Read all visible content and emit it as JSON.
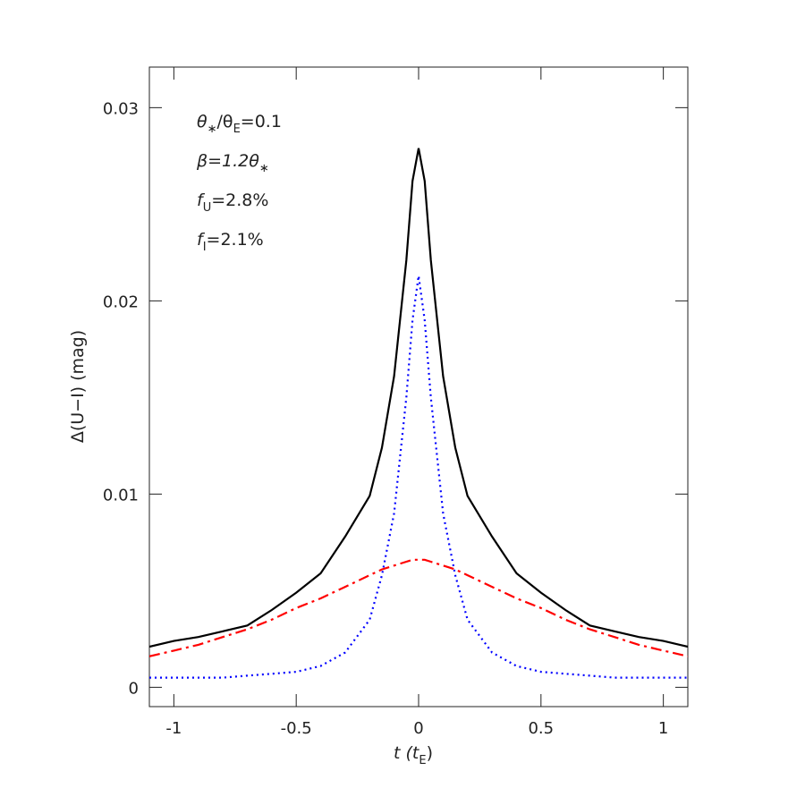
{
  "chart_data": {
    "type": "line",
    "x_label": [
      "t  (t",
      "E",
      ")"
    ],
    "y_label": [
      "Δ(U−I)  (mag)"
    ],
    "annotations": [
      [
        "θ",
        "∗",
        "/θ",
        "E",
        "=0.1"
      ],
      [
        "β=1.2θ",
        "∗"
      ],
      [
        "f",
        "U",
        "=2.8%"
      ],
      [
        "f",
        "I",
        "=2.1%"
      ]
    ],
    "x": [
      -1.1,
      -1,
      -0.9,
      -0.8,
      -0.7,
      -0.6,
      -0.5,
      -0.4,
      -0.3,
      -0.2,
      -0.15,
      -0.1,
      -0.05,
      -0.025,
      0,
      0.025,
      0.05,
      0.1,
      0.15,
      0.2,
      0.3,
      0.4,
      0.5,
      0.6,
      0.7,
      0.8,
      0.9,
      1,
      1.1
    ],
    "series": [
      {
        "color": "#000000",
        "dash": "solid",
        "values": [
          0.0021,
          0.0024,
          0.0026,
          0.0029,
          0.0032,
          0.004,
          0.0049,
          0.0059,
          0.0078,
          0.0099,
          0.0124,
          0.0161,
          0.0221,
          0.0262,
          0.0279,
          0.0262,
          0.0221,
          0.0161,
          0.0124,
          0.0099,
          0.0078,
          0.0059,
          0.0049,
          0.004,
          0.0032,
          0.0029,
          0.0026,
          0.0024,
          0.0021
        ]
      },
      {
        "color": "#0000ff",
        "dash": "dotted",
        "values": [
          0.0005,
          0.0005,
          0.0005,
          0.0005,
          0.0006,
          0.0007,
          0.0008,
          0.0011,
          0.0018,
          0.0035,
          0.0058,
          0.009,
          0.015,
          0.019,
          0.0213,
          0.019,
          0.015,
          0.009,
          0.0058,
          0.0035,
          0.0018,
          0.0011,
          0.0008,
          0.0007,
          0.0006,
          0.0005,
          0.0005,
          0.0005,
          0.0005
        ]
      },
      {
        "color": "#ff0000",
        "dash": "dashdot",
        "values": [
          0.0016,
          0.0019,
          0.0022,
          0.0026,
          0.003,
          0.0035,
          0.0041,
          0.0046,
          0.0052,
          0.0058,
          0.0061,
          0.0063,
          0.0065,
          0.0066,
          0.0066,
          0.0066,
          0.0065,
          0.0063,
          0.0061,
          0.0058,
          0.0052,
          0.0046,
          0.0041,
          0.0035,
          0.003,
          0.0026,
          0.0022,
          0.0019,
          0.0016
        ]
      }
    ],
    "xlim": [
      -1.1,
      1.1
    ],
    "xticks": [
      -1,
      -0.5,
      0,
      0.5,
      1
    ],
    "ylim": [
      -0.001,
      0.0321
    ],
    "yticks": [
      0,
      0.01,
      0.02,
      0.03
    ]
  }
}
